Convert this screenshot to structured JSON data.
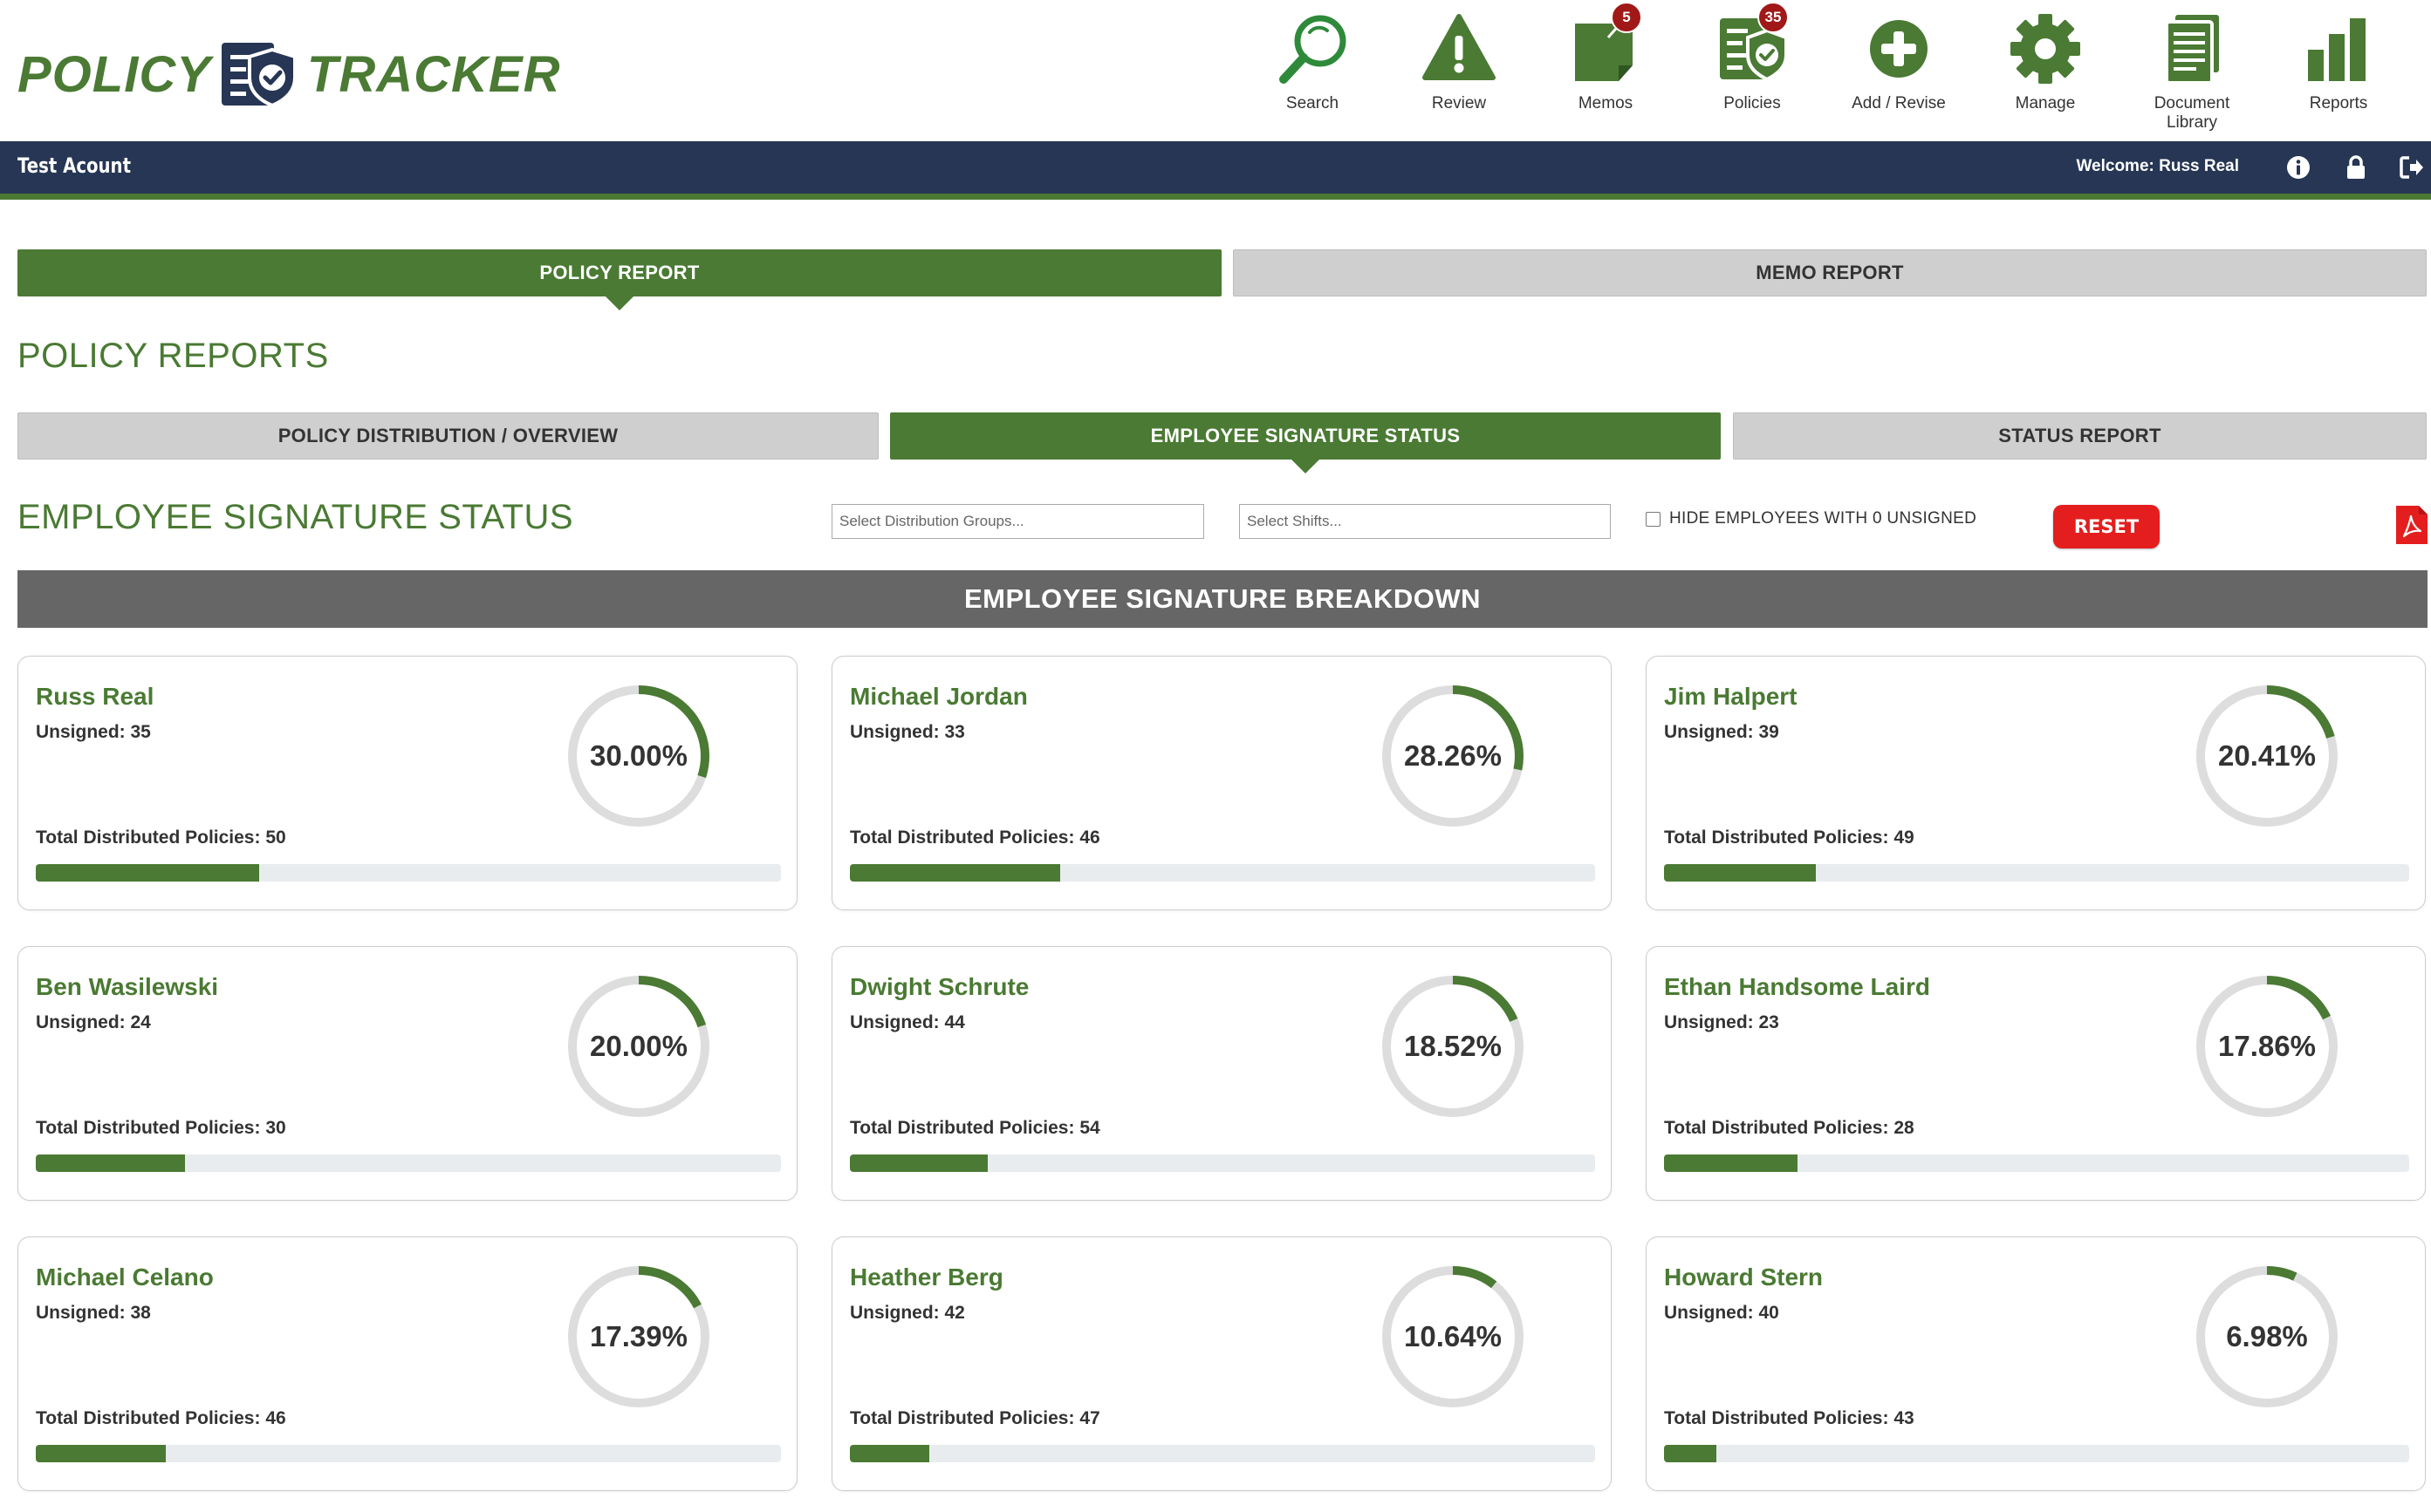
{
  "brand": {
    "word_left": "POLICY",
    "word_right": "TRACKER",
    "color": "#4a7a33"
  },
  "nav": [
    {
      "label": "Search",
      "icon": "search-icon",
      "badge": null
    },
    {
      "label": "Review",
      "icon": "warning-icon",
      "badge": null
    },
    {
      "label": "Memos",
      "icon": "memo-icon",
      "badge": "5"
    },
    {
      "label": "Policies",
      "icon": "policy-check-icon",
      "badge": "35"
    },
    {
      "label": "Add / Revise",
      "icon": "plus-circle-icon",
      "badge": null
    },
    {
      "label": "Manage",
      "icon": "gear-icon",
      "badge": null
    },
    {
      "label": "Document Library",
      "icon": "documents-icon",
      "badge": null
    },
    {
      "label": "Reports",
      "icon": "bar-chart-icon",
      "badge": null
    }
  ],
  "account": {
    "name": "Test Acount",
    "welcome": "Welcome: Russ Real",
    "icons": [
      "info-icon",
      "lock-icon",
      "logout-icon"
    ]
  },
  "top_tabs": [
    {
      "label": "POLICY REPORT",
      "active": true
    },
    {
      "label": "MEMO REPORT",
      "active": false
    }
  ],
  "reports_title": "POLICY REPORTS",
  "sub_tabs": [
    {
      "label": "POLICY DISTRIBUTION / OVERVIEW",
      "active": false
    },
    {
      "label": "EMPLOYEE SIGNATURE STATUS",
      "active": true
    },
    {
      "label": "STATUS REPORT",
      "active": false
    }
  ],
  "status_title": "EMPLOYEE SIGNATURE STATUS",
  "filters": {
    "groups_placeholder": "Select Distribution Groups...",
    "shifts_placeholder": "Select Shifts...",
    "hide_zero_label": "HIDE EMPLOYEES WITH 0 UNSIGNED",
    "hide_zero_checked": false,
    "reset_label": "RESET"
  },
  "breakdown_title": "EMPLOYEE SIGNATURE BREAKDOWN",
  "labels": {
    "unsigned_prefix": "Unsigned: ",
    "total_prefix": "Total Distributed Policies: "
  },
  "colors": {
    "accent": "#4a7a33",
    "navy": "#263654",
    "reset": "#e41e1e",
    "badge": "#a01818",
    "ring_track": "#dddddd"
  },
  "employees": [
    {
      "name": "Russ Real",
      "unsigned": 35,
      "total": 50,
      "percent": "30.00%",
      "fraction": 0.3
    },
    {
      "name": "Michael Jordan",
      "unsigned": 33,
      "total": 46,
      "percent": "28.26%",
      "fraction": 0.2826
    },
    {
      "name": "Jim Halpert",
      "unsigned": 39,
      "total": 49,
      "percent": "20.41%",
      "fraction": 0.2041
    },
    {
      "name": "Ben Wasilewski",
      "unsigned": 24,
      "total": 30,
      "percent": "20.00%",
      "fraction": 0.2
    },
    {
      "name": "Dwight Schrute",
      "unsigned": 44,
      "total": 54,
      "percent": "18.52%",
      "fraction": 0.1852
    },
    {
      "name": "Ethan Handsome Laird",
      "unsigned": 23,
      "total": 28,
      "percent": "17.86%",
      "fraction": 0.1786
    },
    {
      "name": "Michael Celano",
      "unsigned": 38,
      "total": 46,
      "percent": "17.39%",
      "fraction": 0.1739
    },
    {
      "name": "Heather Berg",
      "unsigned": 42,
      "total": 47,
      "percent": "10.64%",
      "fraction": 0.1064
    },
    {
      "name": "Howard Stern",
      "unsigned": 40,
      "total": 43,
      "percent": "6.98%",
      "fraction": 0.0698
    }
  ]
}
